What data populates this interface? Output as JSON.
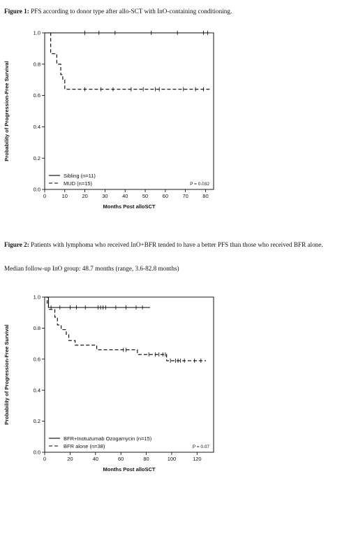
{
  "captions": {
    "fig1_label": "Figure 1:",
    "fig1_text": " PFS according to donor type after allo-SCT with InO-containing conditioning.",
    "fig2_label": "Figure 2:",
    "fig2_text": " Patients with lymphoma who received InO+BFR tended to have a better PFS than those who received BFR alone.",
    "followup": "Median follow-up InO group: 48.7 months (range, 3.6-82.8 months)"
  },
  "chart_data": [
    {
      "type": "line",
      "title": "",
      "xlabel": "Months Post alloSCT",
      "ylabel": "Probability of Progression-Free Survival",
      "xlim": [
        0,
        84
      ],
      "ylim": [
        0,
        1
      ],
      "x_ticks": [
        0,
        10,
        20,
        30,
        40,
        50,
        60,
        70,
        80
      ],
      "y_ticks": [
        "0.0",
        "0.2",
        "0.4",
        "0.6",
        "0.8",
        "1.0"
      ],
      "legend_position": "bottom-left",
      "annotation": "P = 0.032",
      "series": [
        {
          "name": "Sibling (n=11)",
          "style": "solid",
          "steps": [
            [
              0,
              1.0
            ],
            [
              82,
              1.0
            ]
          ],
          "censored": [
            [
              20,
              1.0
            ],
            [
              27,
              1.0
            ],
            [
              35,
              1.0
            ],
            [
              53,
              1.0
            ],
            [
              66,
              1.0
            ],
            [
              79,
              1.0
            ],
            [
              81,
              1.0
            ]
          ]
        },
        {
          "name": "MUD (n=15)",
          "style": "dashed",
          "steps": [
            [
              0,
              1.0
            ],
            [
              3,
              1.0
            ],
            [
              3,
              0.867
            ],
            [
              6,
              0.867
            ],
            [
              6,
              0.8
            ],
            [
              8,
              0.8
            ],
            [
              8,
              0.733
            ],
            [
              9,
              0.733
            ],
            [
              9,
              0.7
            ],
            [
              10,
              0.7
            ],
            [
              10,
              0.64
            ],
            [
              83,
              0.64
            ]
          ],
          "censored": [
            [
              20,
              0.64
            ],
            [
              28,
              0.64
            ],
            [
              34,
              0.64
            ],
            [
              43,
              0.64
            ],
            [
              49,
              0.64
            ],
            [
              55,
              0.64
            ],
            [
              57,
              0.64
            ],
            [
              69,
              0.64
            ],
            [
              75,
              0.64
            ],
            [
              79,
              0.64
            ]
          ]
        }
      ]
    },
    {
      "type": "line",
      "title": "",
      "xlabel": "Months Post alloSCT",
      "ylabel": "Probability of Progression-Free Survival",
      "xlim": [
        0,
        133
      ],
      "ylim": [
        0,
        1
      ],
      "x_ticks": [
        0,
        20,
        40,
        60,
        80,
        100,
        120
      ],
      "y_ticks": [
        "0.0",
        "0.2",
        "0.4",
        "0.6",
        "0.8",
        "1.0"
      ],
      "legend_position": "bottom-left",
      "annotation": "P = 0.07",
      "series": [
        {
          "name": "BFR+Inotuzumab Ozogamycin (n=15)",
          "style": "solid",
          "steps": [
            [
              0,
              1.0
            ],
            [
              3,
              1.0
            ],
            [
              3,
              0.933
            ],
            [
              83,
              0.933
            ]
          ],
          "censored": [
            [
              5,
              0.933
            ],
            [
              12,
              0.933
            ],
            [
              20,
              0.933
            ],
            [
              25,
              0.933
            ],
            [
              32,
              0.933
            ],
            [
              42,
              0.933
            ],
            [
              44,
              0.933
            ],
            [
              46,
              0.933
            ],
            [
              48,
              0.933
            ],
            [
              56,
              0.933
            ],
            [
              64,
              0.933
            ],
            [
              72,
              0.933
            ],
            [
              77,
              0.933
            ]
          ]
        },
        {
          "name": "BFR alone (n=38)",
          "style": "dashed",
          "steps": [
            [
              0,
              1.0
            ],
            [
              2,
              1.0
            ],
            [
              2,
              0.95
            ],
            [
              3,
              0.95
            ],
            [
              3,
              0.92
            ],
            [
              8,
              0.92
            ],
            [
              8,
              0.87
            ],
            [
              10,
              0.87
            ],
            [
              10,
              0.82
            ],
            [
              13,
              0.82
            ],
            [
              13,
              0.79
            ],
            [
              17,
              0.79
            ],
            [
              17,
              0.76
            ],
            [
              19,
              0.76
            ],
            [
              19,
              0.72
            ],
            [
              24,
              0.72
            ],
            [
              24,
              0.69
            ],
            [
              41,
              0.69
            ],
            [
              41,
              0.66
            ],
            [
              73,
              0.66
            ],
            [
              73,
              0.63
            ],
            [
              96,
              0.63
            ],
            [
              96,
              0.59
            ],
            [
              127,
              0.59
            ]
          ],
          "censored": [
            [
              62,
              0.66
            ],
            [
              64,
              0.66
            ],
            [
              82,
              0.63
            ],
            [
              87,
              0.63
            ],
            [
              90,
              0.63
            ],
            [
              93,
              0.63
            ],
            [
              95,
              0.63
            ],
            [
              99,
              0.59
            ],
            [
              103,
              0.59
            ],
            [
              105,
              0.59
            ],
            [
              107,
              0.59
            ],
            [
              110,
              0.59
            ],
            [
              118,
              0.59
            ],
            [
              123,
              0.59
            ]
          ]
        }
      ]
    }
  ]
}
